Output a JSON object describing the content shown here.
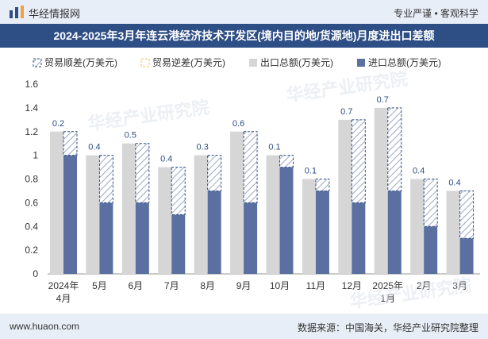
{
  "header": {
    "brand": "华经情报网",
    "tagline": "专业严谨 • 客观科学"
  },
  "title": "2024-2025年3月年连云港经济技术开发区(境内目的地/货源地)月度进出口差额",
  "footer": {
    "website": "www.huaon.com",
    "source": "数据来源：中国海关，华经产业研究院整理"
  },
  "watermarks": [
    "华经产业研究院",
    "华经产业研究院",
    "华经产业研究院"
  ],
  "colors": {
    "export": "#d6d6d6",
    "import": "#5b6fa0",
    "surplus_fill": "#ffffff",
    "surplus_stroke": "#2e4e86",
    "deficit": "#f2c14e",
    "label": "#2e4e86",
    "header_bg": "#2e4e86"
  },
  "chart_data": {
    "type": "bar",
    "title": "2024-2025年3月年连云港经济技术开发区(境内目的地/货源地)月度进出口差额",
    "categories": [
      "2024年\n4月",
      "5月",
      "6月",
      "7月",
      "8月",
      "9月",
      "10月",
      "11月",
      "12月",
      "2025年\n1月",
      "2月",
      "3月"
    ],
    "series": [
      {
        "name": "贸易顺差(万美元)",
        "values": [
          0.2,
          0.4,
          0.5,
          0.4,
          0.3,
          0.6,
          0.1,
          0.1,
          0.7,
          0.7,
          0.4,
          0.4
        ]
      },
      {
        "name": "贸易逆差(万美元)",
        "values": [
          0,
          0,
          0,
          0,
          0,
          0,
          0,
          0,
          0,
          0,
          0,
          0
        ]
      },
      {
        "name": "出口总额(万美元)",
        "values": [
          1.2,
          1.0,
          1.1,
          0.9,
          1.0,
          1.2,
          1.0,
          0.8,
          1.3,
          1.4,
          0.8,
          0.7
        ]
      },
      {
        "name": "进口总额(万美元)",
        "values": [
          1.0,
          0.6,
          0.6,
          0.5,
          0.7,
          0.6,
          0.9,
          0.7,
          0.6,
          0.7,
          0.4,
          0.3
        ]
      }
    ],
    "data_labels": [
      "0.2",
      "0.4",
      "0.5",
      "0.4",
      "0.3",
      "0.6",
      "0.1",
      "0.1",
      "0.7",
      "0.7",
      "0.4",
      "0.4"
    ],
    "yticks": [
      "0",
      "0.2",
      "0.4",
      "0.6",
      "0.8",
      "1",
      "1.2",
      "1.4",
      "1.6"
    ],
    "ylim": [
      0,
      1.6
    ],
    "xlabel": "",
    "ylabel": "",
    "legend_position": "top",
    "grid": true
  }
}
